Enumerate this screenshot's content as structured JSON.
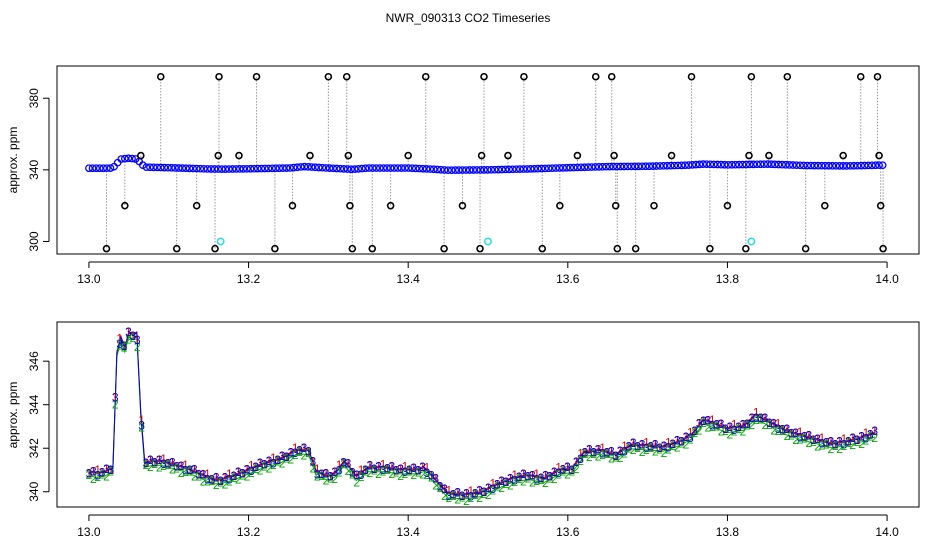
{
  "figure_title": "NWR_090313  CO2 Timeseries",
  "chart_data": [
    {
      "type": "scatter",
      "title": "NWR_090313  CO2 Timeseries",
      "xlabel": "",
      "ylabel": "approx. ppm",
      "xlim": [
        12.96,
        14.04
      ],
      "ylim": [
        293,
        398
      ],
      "xticks": [
        13.0,
        13.2,
        13.4,
        13.6,
        13.8,
        14.0
      ],
      "xtick_labels": [
        "13.0",
        "13.2",
        "13.4",
        "13.6",
        "13.8",
        "14.0"
      ],
      "yticks": [
        300,
        340,
        380
      ],
      "ytick_labels": [
        "300",
        "340",
        "380"
      ],
      "grid": false,
      "colors": {
        "baseline": "#0000ff",
        "spike": "#000000",
        "cyan": "#33dddd",
        "link": "#999999"
      },
      "baseline_points": [
        [
          13.0,
          340.9
        ],
        [
          13.02,
          340.9
        ],
        [
          13.03,
          341.0
        ],
        [
          13.04,
          346.0
        ],
        [
          13.05,
          346.5
        ],
        [
          13.06,
          346.0
        ],
        [
          13.07,
          341.5
        ],
        [
          13.1,
          341.2
        ],
        [
          13.15,
          340.5
        ],
        [
          13.17,
          340.4
        ],
        [
          13.2,
          340.6
        ],
        [
          13.25,
          341.0
        ],
        [
          13.27,
          341.8
        ],
        [
          13.3,
          341.0
        ],
        [
          13.33,
          340.3
        ],
        [
          13.35,
          341.0
        ],
        [
          13.4,
          341.0
        ],
        [
          13.43,
          340.4
        ],
        [
          13.45,
          339.8
        ],
        [
          13.5,
          340.0
        ],
        [
          13.55,
          340.5
        ],
        [
          13.6,
          341.2
        ],
        [
          13.65,
          341.8
        ],
        [
          13.7,
          342.0
        ],
        [
          13.75,
          342.6
        ],
        [
          13.77,
          343.2
        ],
        [
          13.8,
          342.8
        ],
        [
          13.85,
          343.2
        ],
        [
          13.9,
          342.4
        ],
        [
          13.95,
          342.2
        ],
        [
          13.99,
          342.6
        ]
      ],
      "spikes": [
        [
          13.022,
          296
        ],
        [
          13.045,
          320
        ],
        [
          13.065,
          348
        ],
        [
          13.09,
          392
        ],
        [
          13.11,
          296
        ],
        [
          13.135,
          320
        ],
        [
          13.158,
          296
        ],
        [
          13.162,
          348
        ],
        [
          13.163,
          392
        ],
        [
          13.188,
          348
        ],
        [
          13.21,
          392
        ],
        [
          13.233,
          296
        ],
        [
          13.255,
          320
        ],
        [
          13.277,
          348
        ],
        [
          13.3,
          392
        ],
        [
          13.323,
          392
        ],
        [
          13.325,
          348
        ],
        [
          13.327,
          320
        ],
        [
          13.33,
          296
        ],
        [
          13.355,
          296
        ],
        [
          13.378,
          320
        ],
        [
          13.4,
          348
        ],
        [
          13.422,
          392
        ],
        [
          13.445,
          296
        ],
        [
          13.468,
          320
        ],
        [
          13.49,
          296
        ],
        [
          13.492,
          348
        ],
        [
          13.495,
          392
        ],
        [
          13.525,
          348
        ],
        [
          13.545,
          392
        ],
        [
          13.568,
          296
        ],
        [
          13.59,
          320
        ],
        [
          13.612,
          348
        ],
        [
          13.635,
          392
        ],
        [
          13.655,
          392
        ],
        [
          13.658,
          348
        ],
        [
          13.66,
          320
        ],
        [
          13.662,
          296
        ],
        [
          13.685,
          296
        ],
        [
          13.708,
          320
        ],
        [
          13.73,
          348
        ],
        [
          13.755,
          392
        ],
        [
          13.778,
          296
        ],
        [
          13.8,
          320
        ],
        [
          13.823,
          296
        ],
        [
          13.827,
          348
        ],
        [
          13.83,
          392
        ],
        [
          13.852,
          348
        ],
        [
          13.875,
          392
        ],
        [
          13.898,
          296
        ],
        [
          13.922,
          320
        ],
        [
          13.945,
          348
        ],
        [
          13.967,
          392
        ],
        [
          13.988,
          392
        ],
        [
          13.99,
          348
        ],
        [
          13.992,
          320
        ],
        [
          13.995,
          296
        ]
      ],
      "cyan_points": [
        [
          13.165,
          300
        ],
        [
          13.5,
          300
        ],
        [
          13.83,
          300
        ]
      ]
    },
    {
      "type": "line",
      "title": "",
      "xlabel": "",
      "ylabel": "approx. ppm",
      "xlim": [
        12.96,
        14.04
      ],
      "ylim": [
        339.3,
        347.8
      ],
      "xticks": [
        13.0,
        13.2,
        13.4,
        13.6,
        13.8,
        14.0
      ],
      "xtick_labels": [
        "13.0",
        "13.2",
        "13.4",
        "13.6",
        "13.8",
        "14.0"
      ],
      "yticks": [
        340,
        342,
        344,
        346
      ],
      "ytick_labels": [
        "340",
        "342",
        "344",
        "346"
      ],
      "grid": false,
      "series": [
        {
          "marker": "1",
          "color": "#dd0000",
          "offset": 0.05
        },
        {
          "marker": "2",
          "color": "#00aa00",
          "offset": -0.18
        },
        {
          "marker": "3",
          "color": "#0000dd",
          "offset": 0.0
        }
      ],
      "x": [
        13.0,
        13.01,
        13.02,
        13.03,
        13.035,
        13.04,
        13.045,
        13.05,
        13.055,
        13.06,
        13.065,
        13.07,
        13.08,
        13.09,
        13.1,
        13.12,
        13.14,
        13.155,
        13.165,
        13.18,
        13.2,
        13.22,
        13.24,
        13.26,
        13.275,
        13.285,
        13.3,
        13.31,
        13.32,
        13.335,
        13.35,
        13.37,
        13.39,
        13.41,
        13.42,
        13.435,
        13.45,
        13.47,
        13.49,
        13.51,
        13.53,
        13.55,
        13.57,
        13.59,
        13.605,
        13.62,
        13.64,
        13.66,
        13.68,
        13.7,
        13.72,
        13.74,
        13.755,
        13.77,
        13.785,
        13.8,
        13.82,
        13.835,
        13.85,
        13.87,
        13.89,
        13.91,
        13.93,
        13.95,
        13.97,
        13.985
      ],
      "y": [
        340.9,
        340.85,
        340.9,
        341.1,
        346.4,
        347.1,
        346.6,
        347.3,
        347.2,
        347.3,
        343.6,
        341.3,
        341.4,
        341.4,
        341.3,
        341.1,
        340.8,
        340.55,
        340.55,
        340.7,
        341.0,
        341.3,
        341.5,
        341.9,
        341.9,
        340.9,
        340.7,
        340.9,
        341.4,
        340.7,
        341.1,
        341.1,
        341.0,
        341.0,
        341.1,
        340.5,
        339.9,
        339.85,
        339.95,
        340.3,
        340.6,
        340.75,
        340.6,
        341.0,
        341.05,
        341.8,
        341.9,
        341.7,
        342.15,
        342.1,
        342.05,
        342.3,
        342.6,
        343.3,
        343.1,
        342.9,
        343.0,
        343.5,
        343.25,
        342.85,
        342.6,
        342.4,
        342.2,
        342.3,
        342.5,
        342.7
      ]
    }
  ]
}
